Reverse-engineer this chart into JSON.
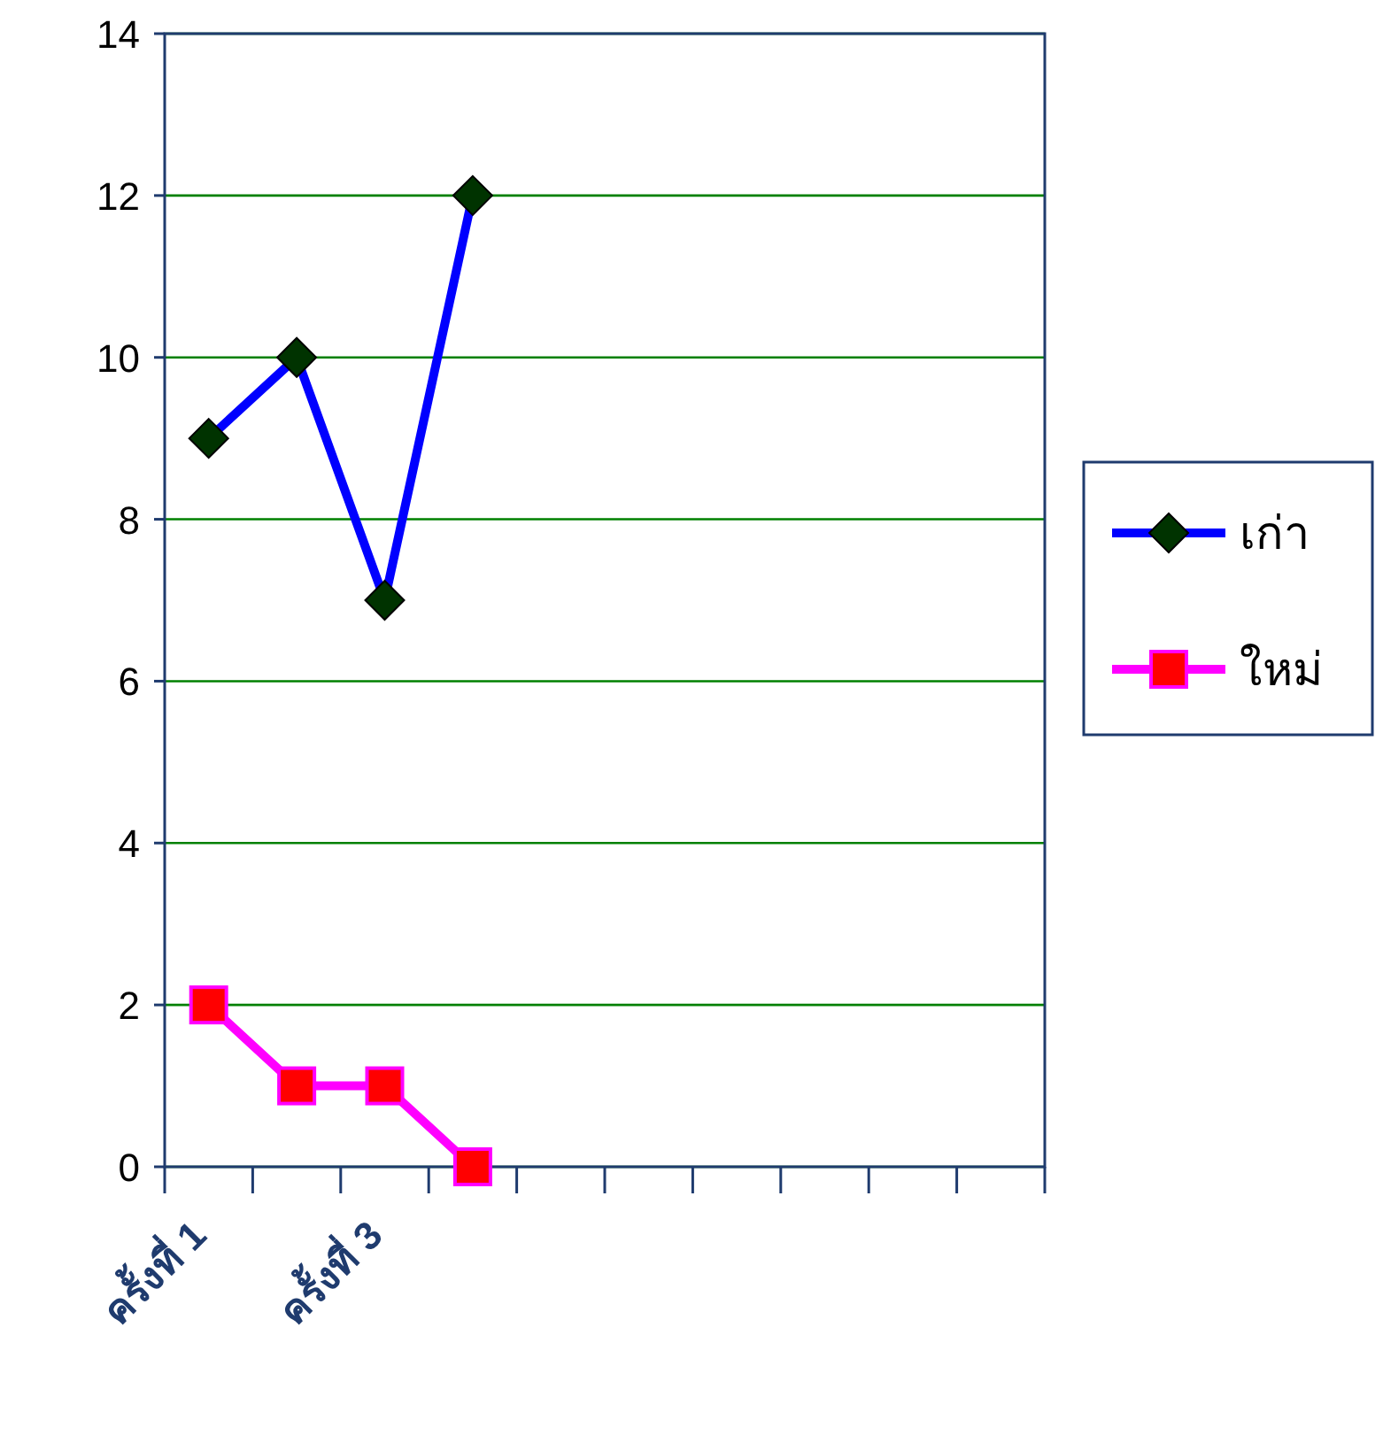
{
  "chart_data": {
    "type": "line",
    "categories": [
      "ครั้งที่ 1",
      null,
      "ครั้งที่ 3",
      null,
      null,
      null,
      null,
      null,
      null,
      null
    ],
    "series": [
      {
        "name": "เก่า",
        "color": "#0000ff",
        "marker": "diamond",
        "colors": [
          "#003300",
          "#003300",
          "#003300",
          "#003300",
          null,
          null,
          null,
          null,
          null,
          null
        ],
        "values": [
          9,
          10,
          7,
          12,
          null,
          null,
          null,
          null,
          null,
          null
        ]
      },
      {
        "name": "ใหม่",
        "color": "#ff00ff",
        "marker": "square",
        "colors": [
          "#ff0000",
          "#ff0000",
          "#ff0000",
          "#ff0000",
          null,
          null,
          null,
          null,
          null,
          null
        ],
        "values": [
          2,
          1,
          1,
          0,
          null,
          null,
          null,
          null,
          null,
          null
        ]
      }
    ],
    "ylim": [
      0,
      14
    ],
    "yticks": [
      0,
      2,
      4,
      6,
      8,
      10,
      12,
      14
    ],
    "grid": "y",
    "legend": "right"
  }
}
